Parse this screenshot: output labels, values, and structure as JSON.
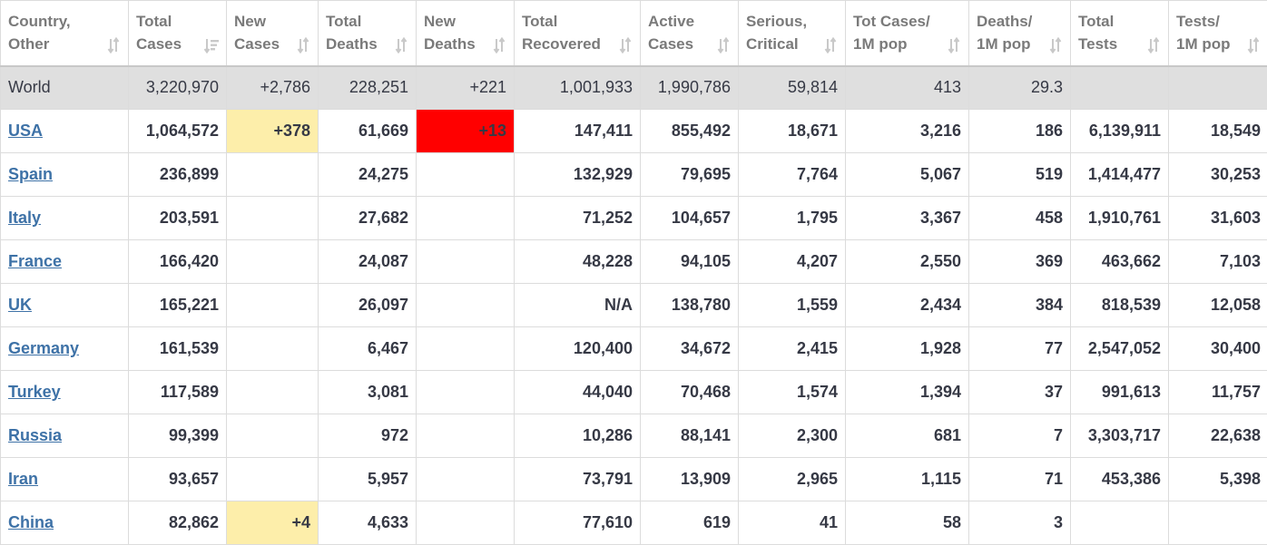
{
  "colors": {
    "header_text": "#7a7a7a",
    "link": "#3e72a7",
    "world_row_bg": "#dfdfdf",
    "new_cases_highlight": "#fdeeaa",
    "new_deaths_highlight": "#ff0000",
    "border": "#dcdcdc"
  },
  "headers": [
    {
      "lines": [
        "Country,",
        "Other"
      ],
      "icon": "sort-icon"
    },
    {
      "lines": [
        "Total",
        "Cases"
      ],
      "icon": "sort-descending-icon"
    },
    {
      "lines": [
        "New",
        "Cases"
      ],
      "icon": "sort-icon"
    },
    {
      "lines": [
        "Total",
        "Deaths"
      ],
      "icon": "sort-icon"
    },
    {
      "lines": [
        "New",
        "Deaths"
      ],
      "icon": "sort-icon"
    },
    {
      "lines": [
        "Total",
        "Recovered"
      ],
      "icon": "sort-icon"
    },
    {
      "lines": [
        "Active",
        "Cases"
      ],
      "icon": "sort-icon"
    },
    {
      "lines": [
        "Serious,",
        "Critical"
      ],
      "icon": "sort-icon"
    },
    {
      "lines": [
        "Tot Cases/",
        "1M pop"
      ],
      "icon": "sort-icon"
    },
    {
      "lines": [
        "Deaths/",
        "1M pop"
      ],
      "icon": "sort-icon"
    },
    {
      "lines": [
        "Total",
        "Tests"
      ],
      "icon": "sort-icon"
    },
    {
      "lines": [
        "Tests/",
        "1M pop"
      ],
      "icon": "sort-icon"
    }
  ],
  "world": [
    "World",
    "3,220,970",
    "+2,786",
    "228,251",
    "+221",
    "1,001,933",
    "1,990,786",
    "59,814",
    "413",
    "29.3",
    "",
    ""
  ],
  "rows": [
    [
      "USA",
      "1,064,572",
      "+378",
      "61,669",
      "+13",
      "147,411",
      "855,492",
      "18,671",
      "3,216",
      "186",
      "6,139,911",
      "18,549"
    ],
    [
      "Spain",
      "236,899",
      "",
      "24,275",
      "",
      "132,929",
      "79,695",
      "7,764",
      "5,067",
      "519",
      "1,414,477",
      "30,253"
    ],
    [
      "Italy",
      "203,591",
      "",
      "27,682",
      "",
      "71,252",
      "104,657",
      "1,795",
      "3,367",
      "458",
      "1,910,761",
      "31,603"
    ],
    [
      "France",
      "166,420",
      "",
      "24,087",
      "",
      "48,228",
      "94,105",
      "4,207",
      "2,550",
      "369",
      "463,662",
      "7,103"
    ],
    [
      "UK",
      "165,221",
      "",
      "26,097",
      "",
      "N/A",
      "138,780",
      "1,559",
      "2,434",
      "384",
      "818,539",
      "12,058"
    ],
    [
      "Germany",
      "161,539",
      "",
      "6,467",
      "",
      "120,400",
      "34,672",
      "2,415",
      "1,928",
      "77",
      "2,547,052",
      "30,400"
    ],
    [
      "Turkey",
      "117,589",
      "",
      "3,081",
      "",
      "44,040",
      "70,468",
      "1,574",
      "1,394",
      "37",
      "991,613",
      "11,757"
    ],
    [
      "Russia",
      "99,399",
      "",
      "972",
      "",
      "10,286",
      "88,141",
      "2,300",
      "681",
      "7",
      "3,303,717",
      "22,638"
    ],
    [
      "Iran",
      "93,657",
      "",
      "5,957",
      "",
      "73,791",
      "13,909",
      "2,965",
      "1,115",
      "71",
      "453,386",
      "5,398"
    ],
    [
      "China",
      "82,862",
      "+4",
      "4,633",
      "",
      "77,610",
      "619",
      "41",
      "58",
      "3",
      "",
      ""
    ]
  ]
}
